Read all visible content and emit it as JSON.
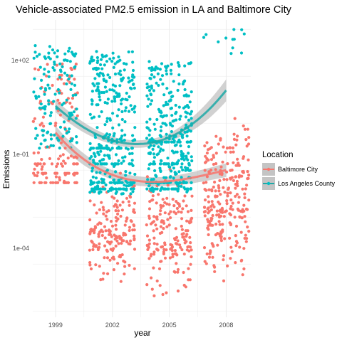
{
  "chart_data": {
    "type": "scatter",
    "title": "Vehicle-associated PM2.5 emission in LA and Baltimore City",
    "xlabel": "year",
    "ylabel": "Emissions",
    "y_scale": "log10",
    "xlim": [
      1997.8,
      2009.3
    ],
    "ylim_log10": [
      -6.2,
      3.3
    ],
    "x_ticks": [
      1999,
      2002,
      2005,
      2008
    ],
    "y_ticks": [
      {
        "label": "1e+02",
        "log10": 2
      },
      {
        "label": "1e-01",
        "log10": -1
      },
      {
        "label": "1e-04",
        "log10": -4
      }
    ],
    "grid": true,
    "legend": {
      "title": "Location",
      "position": "right",
      "entries": [
        "Baltimore City",
        "Los Angeles County"
      ]
    },
    "series": [
      {
        "name": "Baltimore City",
        "color": "#F8766D",
        "smooth_color": "#F8766D",
        "trend_log10": [
          [
            1999,
            -0.3
          ],
          [
            2002,
            -1.65
          ],
          [
            2005,
            -1.85
          ],
          [
            2008,
            -1.5
          ]
        ],
        "band_halfwidth_log10": [
          0.22,
          0.15,
          0.15,
          0.22
        ],
        "clusters": [
          {
            "x": 1999,
            "count": 150,
            "log10_min": -1.9,
            "log10_max": 1.9,
            "lines_log10": [
              -1.9,
              -1.3,
              -1.6
            ]
          },
          {
            "x": 2002,
            "count": 170,
            "log10_min": -5.3,
            "log10_max": -1.3
          },
          {
            "x": 2005,
            "count": 180,
            "log10_min": -5.9,
            "log10_max": -1.3
          },
          {
            "x": 2008,
            "count": 260,
            "log10_min": -5.4,
            "log10_max": 0.5
          }
        ]
      },
      {
        "name": "Los Angeles County",
        "color": "#00BFC4",
        "smooth_color": "#1FA9A7",
        "trend_log10": [
          [
            1999,
            0.55
          ],
          [
            2002,
            -0.55
          ],
          [
            2005,
            -0.45
          ],
          [
            2008,
            1.05
          ]
        ],
        "band_halfwidth_log10": [
          0.2,
          0.12,
          0.12,
          0.35
        ],
        "clusters": [
          {
            "x": 1999,
            "count": 130,
            "log10_min": -0.8,
            "log10_max": 2.5
          },
          {
            "x": 2002,
            "count": 380,
            "log10_min": -2.3,
            "log10_max": 2.3,
            "lines_log10": [
              -1.3,
              -1.9,
              -2.1,
              -0.8
            ]
          },
          {
            "x": 2005,
            "count": 380,
            "log10_min": -2.2,
            "log10_max": 2.0,
            "lines_log10": [
              -1.3,
              -1.9,
              -2.1,
              -0.6
            ]
          },
          {
            "x": 2008,
            "count": 12,
            "log10_min": 2.0,
            "log10_max": 3.0
          }
        ]
      }
    ]
  }
}
